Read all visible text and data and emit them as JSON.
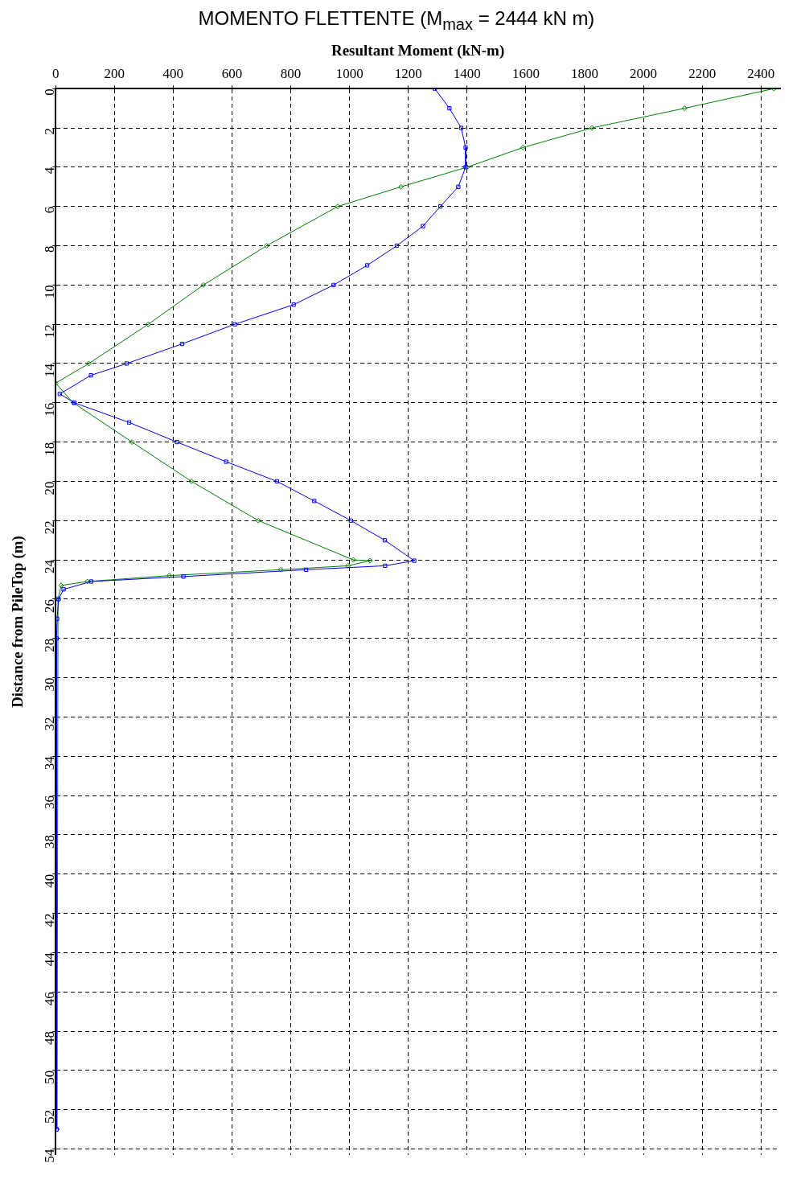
{
  "chart_data": {
    "type": "line",
    "title": "MOMENTO FLETTENTE (M$_{max}$ = 2444 kN m)",
    "xlabel": "Resultant Moment (kN-m)",
    "ylabel": "Distance from PileTop (m)",
    "xlim": [
      0,
      2465
    ],
    "xticks": [
      0,
      200,
      400,
      600,
      800,
      1000,
      1200,
      1400,
      1600,
      1800,
      2000,
      2200,
      2400
    ],
    "ylim": [
      54.3,
      0
    ],
    "yticks": [
      0,
      2,
      4,
      6,
      8,
      10,
      12,
      14,
      16,
      18,
      20,
      22,
      24,
      26,
      28,
      30,
      32,
      34,
      36,
      38,
      40,
      42,
      44,
      46,
      48,
      50,
      52,
      54
    ],
    "grid": true,
    "legend": false,
    "line_style": "solid",
    "series": [
      {
        "color": "#0000ff",
        "marker": "square",
        "x": [
          1290,
          1340,
          1380,
          1395,
          1395,
          1370,
          1309,
          1250,
          1161,
          1060,
          946,
          810,
          610,
          430,
          242,
          120,
          14,
          64,
          250,
          413,
          580,
          753,
          880,
          1005,
          1120,
          1220,
          1121,
          852,
          435,
          121,
          27,
          10,
          5,
          3,
          3
        ],
        "values": [
          0,
          1,
          2,
          3,
          4,
          5,
          6,
          7,
          8,
          9,
          10,
          11,
          12,
          13,
          14,
          14.6,
          15.55,
          16,
          17,
          18,
          19,
          20,
          21,
          22,
          23,
          24.04,
          24.3,
          24.5,
          24.85,
          25.1,
          25.5,
          26,
          27,
          28,
          53
        ]
      },
      {
        "color": "#008000",
        "marker": "diamond",
        "x": [
          2444,
          2140,
          1825,
          1590,
          1400,
          1175,
          960,
          718,
          503,
          315,
          113,
          0,
          60,
          260,
          462,
          690,
          1013,
          1070,
          995,
          766,
          387,
          108,
          19,
          8,
          5
        ],
        "values": [
          0,
          1,
          2,
          3,
          4,
          5,
          6,
          8,
          10,
          12,
          14,
          15,
          16,
          18,
          20,
          22,
          24,
          24.04,
          24.3,
          24.5,
          24.8,
          25.1,
          25.3,
          26,
          53
        ]
      }
    ]
  }
}
